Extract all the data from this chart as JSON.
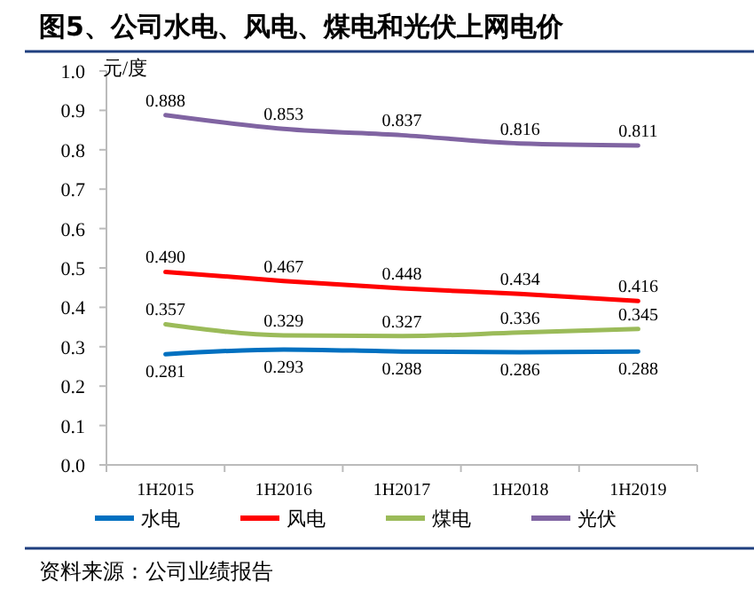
{
  "chart_data": {
    "type": "line",
    "title": "图5、公司水电、风电、煤电和光伏上网电价",
    "ylabel": "元/度",
    "categories": [
      "1H2015",
      "1H2016",
      "1H2017",
      "1H2018",
      "1H2019"
    ],
    "series": [
      {
        "name": "水电",
        "color": "#0070c0",
        "values": [
          0.281,
          0.293,
          0.288,
          0.286,
          0.288
        ]
      },
      {
        "name": "风电",
        "color": "#ff0000",
        "values": [
          0.49,
          0.467,
          0.448,
          0.434,
          0.416
        ],
        "value_labels": [
          "0.490",
          "0.467",
          "0.448",
          "0.434",
          "0.416"
        ]
      },
      {
        "name": "煤电",
        "color": "#9bbb59",
        "values": [
          0.357,
          0.329,
          0.327,
          0.336,
          0.345
        ]
      },
      {
        "name": "光伏",
        "color": "#8064a2",
        "values": [
          0.888,
          0.853,
          0.837,
          0.816,
          0.811
        ]
      }
    ],
    "ylim": [
      0,
      1
    ],
    "yticks": [
      {
        "value": 0,
        "label": "0.0"
      },
      {
        "value": 0.1,
        "label": "0.1"
      },
      {
        "value": 0.2,
        "label": "0.2"
      },
      {
        "value": 0.3,
        "label": "0.3"
      },
      {
        "value": 0.4,
        "label": "0.4"
      },
      {
        "value": 0.5,
        "label": "0.5"
      },
      {
        "value": 0.6,
        "label": "0.6"
      },
      {
        "value": 0.7,
        "label": "0.7"
      },
      {
        "value": 0.8,
        "label": "0.8"
      },
      {
        "value": 0.9,
        "label": "0.9"
      },
      {
        "value": 1,
        "label": "1.0"
      }
    ],
    "grid": false,
    "legend": "bottom",
    "data_labels": true,
    "marker": "none",
    "line_style": "solid",
    "annotations": [
      "资料来源：公司业绩报告"
    ]
  }
}
